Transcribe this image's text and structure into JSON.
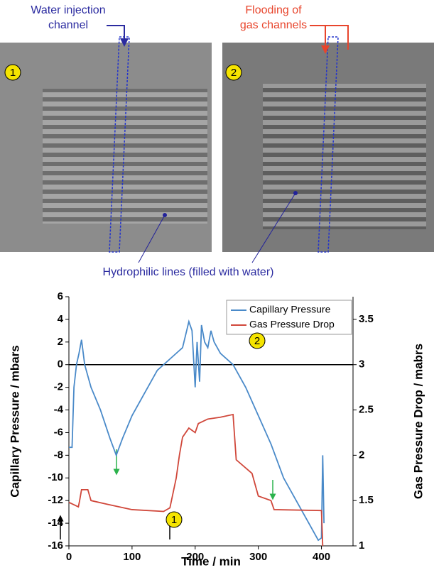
{
  "figure": {
    "water_label": [
      "Water injection",
      "channel"
    ],
    "flooding_label": [
      "Flooding of",
      "gas channels"
    ],
    "hydrophilic_label": "Hydrophilic lines (filled with water)",
    "panel_labels": [
      "1",
      "2"
    ]
  },
  "chart_data": {
    "type": "line",
    "xlabel": "Time  /  min",
    "ylabel": "Capillary Pressure  /  mbars",
    "y2label": "Gas Pressure Drop  /  mabrs",
    "xlim": [
      0,
      450
    ],
    "xticks": [
      0,
      100,
      200,
      300,
      400
    ],
    "ylim": [
      -16,
      6
    ],
    "yticks": [
      -16,
      -14,
      -12,
      -10,
      -8,
      -6,
      -4,
      -2,
      0,
      2,
      4,
      6
    ],
    "y2lim": [
      1,
      3.75
    ],
    "y2ticks": [
      1,
      1.5,
      2,
      2.5,
      3,
      3.5
    ],
    "legend": "top-right",
    "annotations": [
      "1",
      "2"
    ],
    "series": [
      {
        "name": "Capillary Pressure",
        "color": "#4a8ac9",
        "x": [
          0,
          5,
          8,
          12,
          16,
          20,
          25,
          35,
          50,
          65,
          75,
          85,
          100,
          120,
          140,
          160,
          180,
          190,
          195,
          198,
          200,
          203,
          207,
          210,
          215,
          220,
          225,
          230,
          240,
          260,
          280,
          300,
          320,
          340,
          360,
          380,
          395,
          400,
          402,
          404
        ],
        "values": [
          -7.3,
          -7.3,
          -2,
          0,
          1,
          2.2,
          0,
          -2,
          -4,
          -6.5,
          -8,
          -6.5,
          -4.5,
          -2.5,
          -0.5,
          0.5,
          1.5,
          3.8,
          3,
          0,
          -2,
          2,
          -1.5,
          3.5,
          2,
          1.5,
          3,
          2,
          1,
          0,
          -2,
          -4.5,
          -7,
          -10,
          -12,
          -14,
          -15.5,
          -15.3,
          -8,
          -14
        ]
      },
      {
        "name": "Gas Pressure Drop",
        "color": "#d0473a",
        "axis": "y2",
        "x": [
          0,
          15,
          17,
          20,
          30,
          35,
          60,
          80,
          100,
          150,
          160,
          170,
          175,
          180,
          190,
          200,
          205,
          220,
          240,
          260,
          265,
          290,
          300,
          320,
          325,
          400,
          402
        ],
        "values": [
          1.48,
          1.43,
          1.5,
          1.62,
          1.62,
          1.5,
          1.46,
          1.43,
          1.4,
          1.38,
          1.42,
          1.75,
          2.0,
          2.2,
          2.3,
          2.25,
          2.35,
          2.4,
          2.42,
          2.45,
          1.95,
          1.8,
          1.55,
          1.5,
          1.4,
          1.39,
          1.0
        ]
      }
    ]
  }
}
